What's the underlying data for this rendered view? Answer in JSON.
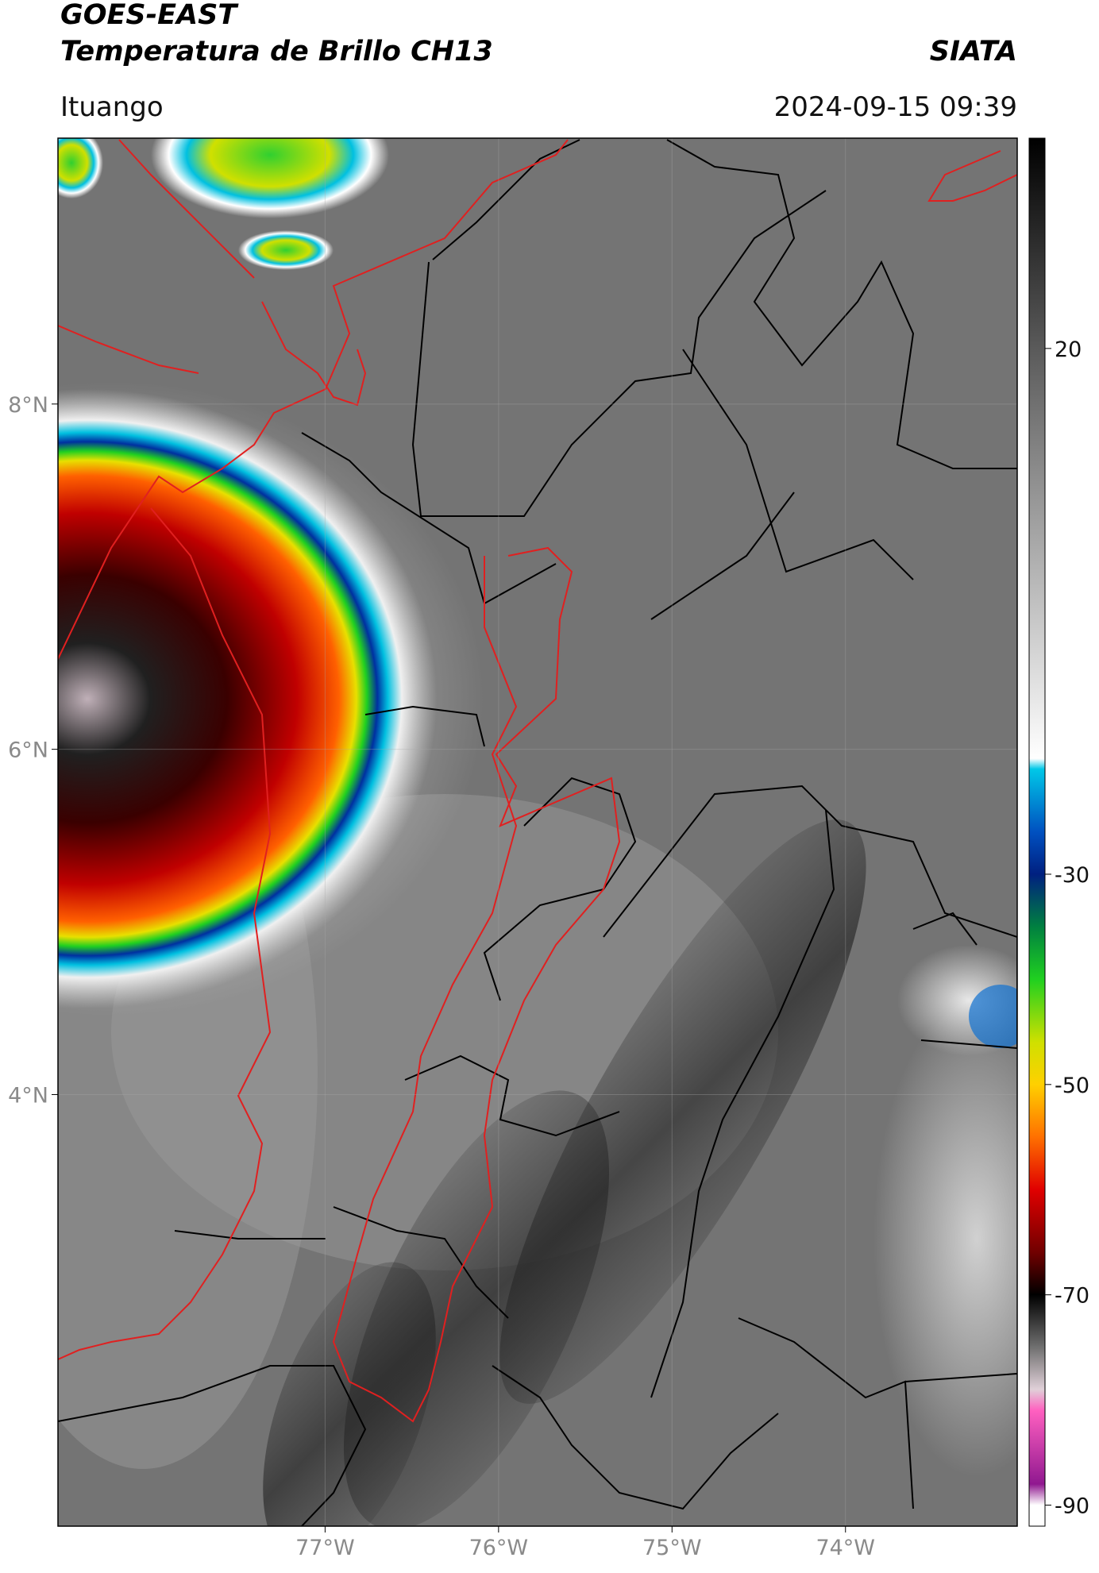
{
  "chart_data": {
    "type": "map",
    "title": "GOES-EAST",
    "subtitle": "Temperatura de Brillo CH13",
    "source": "SIATA",
    "region": "Ituango",
    "timestamp": "2024-09-15 09:39",
    "xlim": [
      -78.54,
      -73.01
    ],
    "ylim": [
      1.5,
      9.54
    ],
    "xticks": [
      {
        "value": -77,
        "label": "77°W"
      },
      {
        "value": -76,
        "label": "76°W"
      },
      {
        "value": -75,
        "label": "75°W"
      },
      {
        "value": -74,
        "label": "74°W"
      }
    ],
    "yticks": [
      {
        "value": 8,
        "label": "8°N"
      },
      {
        "value": 6,
        "label": "6°N"
      },
      {
        "value": 4,
        "label": "4°N"
      }
    ],
    "grid": true,
    "colorbar": {
      "clim": [
        -92,
        40
      ],
      "ticks": [
        20,
        -30,
        -50,
        -70,
        -90
      ],
      "colormap": [
        {
          "value": 40,
          "color": "#000000"
        },
        {
          "value": 20,
          "color": "#5a5a5a"
        },
        {
          "value": -19,
          "color": "#ffffff"
        },
        {
          "value": -20,
          "color": "#00c8e8"
        },
        {
          "value": -26,
          "color": "#0050c0"
        },
        {
          "value": -30,
          "color": "#002080"
        },
        {
          "value": -35,
          "color": "#008040"
        },
        {
          "value": -40,
          "color": "#20d020"
        },
        {
          "value": -46,
          "color": "#d0e000"
        },
        {
          "value": -50,
          "color": "#ffd000"
        },
        {
          "value": -55,
          "color": "#ff7000"
        },
        {
          "value": -60,
          "color": "#e00000"
        },
        {
          "value": -66,
          "color": "#700000"
        },
        {
          "value": -70,
          "color": "#000000"
        },
        {
          "value": -75,
          "color": "#707070"
        },
        {
          "value": -79,
          "color": "#e0d0d8"
        },
        {
          "value": -81,
          "color": "#ff60c0"
        },
        {
          "value": -88,
          "color": "#901890"
        },
        {
          "value": -90,
          "color": "#ffffff"
        },
        {
          "value": -92,
          "color": "#ffffff"
        }
      ]
    }
  }
}
